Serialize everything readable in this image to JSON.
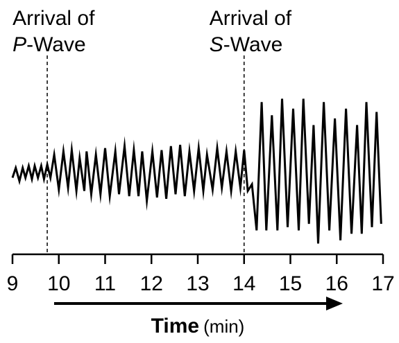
{
  "chart_data": {
    "type": "line",
    "xlim": [
      9,
      17
    ],
    "ticks": [
      "9",
      "10",
      "11",
      "12",
      "13",
      "14",
      "15",
      "16",
      "17"
    ],
    "xlabel": {
      "main": "Time",
      "unit": "(min)"
    },
    "annotations": [
      {
        "line1": "Arrival of",
        "letter": "P",
        "rest": "-Wave",
        "x": 9.75
      },
      {
        "line1": "Arrival of",
        "letter": "S",
        "rest": "-Wave",
        "x": 14.0
      }
    ],
    "series": [
      {
        "x": [
          9.0,
          9.07,
          9.15,
          9.22,
          9.28,
          9.35,
          9.42,
          9.48,
          9.55,
          9.62,
          9.68,
          9.75,
          9.82,
          9.9,
          10.0,
          10.1,
          10.2,
          10.28,
          10.38,
          10.45,
          10.55,
          10.6,
          10.7,
          10.8,
          10.9,
          11.0,
          11.1,
          11.22,
          11.3,
          11.42,
          11.52,
          11.62,
          11.72,
          11.8,
          11.9,
          12.02,
          12.12,
          12.22,
          12.32,
          12.42,
          12.52,
          12.62,
          12.72,
          12.82,
          12.92,
          13.02,
          13.12,
          13.2,
          13.32,
          13.42,
          13.52,
          13.62,
          13.72,
          13.82,
          13.92,
          14.0,
          14.08,
          14.17,
          14.27,
          14.38,
          14.48,
          14.6,
          14.72,
          14.82,
          14.94,
          15.06,
          15.18,
          15.28,
          15.4,
          15.5,
          15.6,
          15.72,
          15.84,
          15.96,
          16.08,
          16.2,
          16.32,
          16.44,
          16.54,
          16.64,
          16.76,
          16.86,
          16.96
        ],
        "y": [
          -0.1,
          0.05,
          -0.15,
          0.05,
          -0.1,
          0.08,
          -0.12,
          0.08,
          -0.1,
          0.08,
          -0.12,
          0.1,
          -0.1,
          0.25,
          -0.28,
          0.3,
          -0.25,
          0.32,
          -0.3,
          0.2,
          -0.3,
          0.3,
          -0.35,
          0.25,
          -0.35,
          0.35,
          -0.38,
          0.3,
          -0.35,
          0.38,
          -0.38,
          0.32,
          -0.38,
          0.3,
          -0.45,
          0.3,
          -0.4,
          0.32,
          -0.42,
          0.38,
          -0.35,
          0.4,
          -0.38,
          0.3,
          -0.3,
          0.35,
          -0.3,
          0.25,
          -0.28,
          0.35,
          -0.25,
          0.3,
          -0.3,
          0.3,
          -0.25,
          0.32,
          -0.3,
          -0.2,
          -0.9,
          1.05,
          -0.9,
          0.85,
          -0.9,
          1.1,
          -0.85,
          0.95,
          -0.9,
          1.1,
          -0.8,
          0.7,
          -1.1,
          1.05,
          -0.9,
          0.8,
          -1.05,
          0.95,
          -0.95,
          0.7,
          -0.95,
          1.05,
          -0.85,
          0.9,
          -0.8
        ]
      }
    ]
  }
}
